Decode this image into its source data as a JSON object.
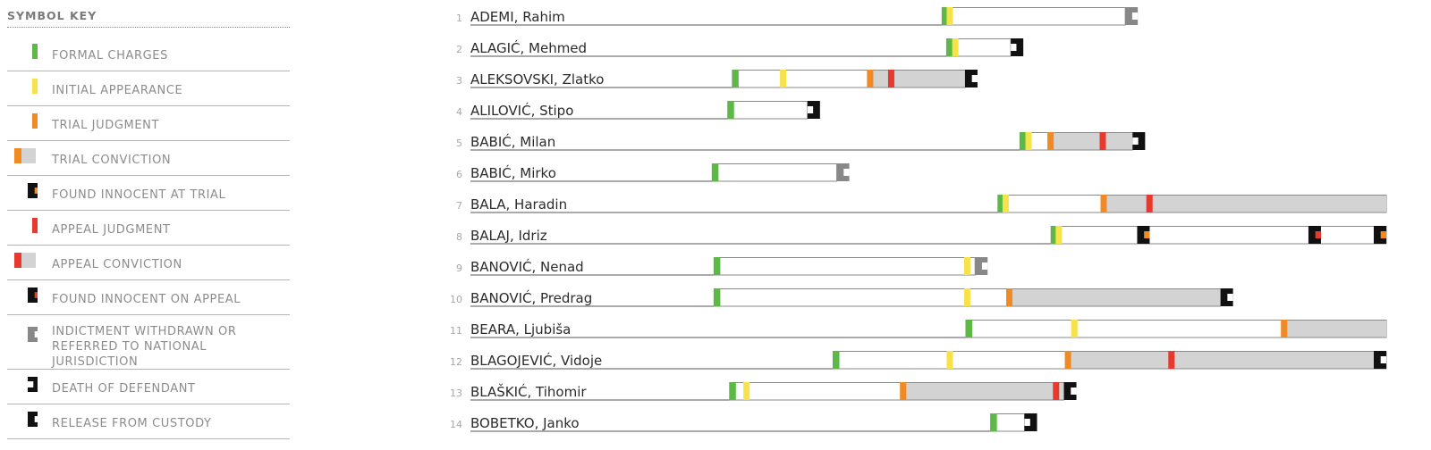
{
  "legend": {
    "title": "SYMBOL KEY",
    "items": [
      {
        "key": "formal_charges",
        "label": "FORMAL CHARGES",
        "icon": "green-bar-icon"
      },
      {
        "key": "initial_appearance",
        "label": "INITIAL APPEARANCE",
        "icon": "yellow-bar-icon"
      },
      {
        "key": "trial_judgment",
        "label": "TRIAL JUDGMENT",
        "icon": "orange-bar-icon"
      },
      {
        "key": "trial_conviction",
        "label": "TRIAL CONVICTION",
        "icon": "orange-gray-bar-icon"
      },
      {
        "key": "found_innocent_trial",
        "label": "FOUND INNOCENT AT TRIAL",
        "icon": "black-bracket-orange-icon"
      },
      {
        "key": "appeal_judgment",
        "label": "APPEAL JUDGMENT",
        "icon": "red-bar-icon"
      },
      {
        "key": "appeal_conviction",
        "label": "APPEAL CONVICTION",
        "icon": "red-gray-bar-icon"
      },
      {
        "key": "found_innocent_appeal",
        "label": "FOUND INNOCENT ON APPEAL",
        "icon": "black-bracket-red-icon"
      },
      {
        "key": "withdrawn",
        "label": "INDICTMENT WITHDRAWN OR\nREFERRED TO NATIONAL JURISDICTION",
        "icon": "gray-bracket-icon"
      },
      {
        "key": "death",
        "label": "DEATH OF DEFENDANT",
        "icon": "black-bracket-right-icon"
      },
      {
        "key": "release",
        "label": "RELEASE FROM CUSTODY",
        "icon": "black-bracket-left-icon"
      }
    ]
  },
  "colors": {
    "formal_charges": "#5cb946",
    "initial_appearance": "#f7e24a",
    "trial_judgment": "#f08a24",
    "appeal_judgment": "#e8392e",
    "conviction_fill": "#d3d3d3",
    "bracket_black": "#111111",
    "bracket_gray": "#888888",
    "row_line": "#555555",
    "bar_border": "#8a8a8a"
  },
  "chart_data": {
    "type": "timeline",
    "x_units": "relative timeline position (0-100, no printed axis)",
    "xlim": [
      0,
      100
    ],
    "rows": [
      {
        "num": "1",
        "name": "ADEMI, Rahim",
        "start": 51.5,
        "end": 71.5,
        "events": [
          {
            "x": 51.5,
            "type": "formal_charges"
          },
          {
            "x": 52.0,
            "type": "initial_appearance"
          },
          {
            "x": 71.5,
            "type": "withdrawn"
          }
        ]
      },
      {
        "num": "2",
        "name": "ALAGIĆ, Mehmed",
        "start": 52.0,
        "end": 59.0,
        "events": [
          {
            "x": 52.0,
            "type": "formal_charges"
          },
          {
            "x": 52.6,
            "type": "initial_appearance"
          },
          {
            "x": 59.0,
            "type": "death"
          }
        ]
      },
      {
        "num": "3",
        "name": "ALEKSOVSKI, Zlatko",
        "start": 28.6,
        "end": 54.0,
        "segments": [
          {
            "from": 43.3,
            "to": 54.0,
            "type": "conviction_fill"
          }
        ],
        "events": [
          {
            "x": 28.6,
            "type": "formal_charges"
          },
          {
            "x": 33.8,
            "type": "initial_appearance"
          },
          {
            "x": 43.3,
            "type": "trial_judgment"
          },
          {
            "x": 45.6,
            "type": "appeal_judgment"
          },
          {
            "x": 54.0,
            "type": "release"
          }
        ]
      },
      {
        "num": "4",
        "name": "ALILOVIĆ, Stipo",
        "start": 28.1,
        "end": 36.8,
        "events": [
          {
            "x": 28.1,
            "type": "formal_charges"
          },
          {
            "x": 36.8,
            "type": "death"
          }
        ]
      },
      {
        "num": "5",
        "name": "BABIĆ, Milan",
        "start": 60.0,
        "end": 72.3,
        "segments": [
          {
            "from": 63.0,
            "to": 72.3,
            "type": "conviction_fill"
          }
        ],
        "events": [
          {
            "x": 60.0,
            "type": "formal_charges"
          },
          {
            "x": 60.6,
            "type": "initial_appearance"
          },
          {
            "x": 63.0,
            "type": "trial_judgment"
          },
          {
            "x": 68.7,
            "type": "appeal_judgment"
          },
          {
            "x": 72.3,
            "type": "death"
          }
        ]
      },
      {
        "num": "6",
        "name": "BABIĆ, Mirko",
        "start": 26.4,
        "end": 40.0,
        "events": [
          {
            "x": 26.4,
            "type": "formal_charges"
          },
          {
            "x": 40.0,
            "type": "withdrawn"
          }
        ]
      },
      {
        "num": "7",
        "name": "BALA, Haradin",
        "start": 57.6,
        "end": 100.0,
        "segments": [
          {
            "from": 68.8,
            "to": 100.0,
            "type": "conviction_fill"
          }
        ],
        "events": [
          {
            "x": 57.6,
            "type": "formal_charges"
          },
          {
            "x": 58.1,
            "type": "initial_appearance"
          },
          {
            "x": 68.8,
            "type": "trial_judgment"
          },
          {
            "x": 73.8,
            "type": "appeal_judgment"
          }
        ]
      },
      {
        "num": "8",
        "name": "BALAJ, Idriz",
        "start": 63.4,
        "end": 100.0,
        "events": [
          {
            "x": 63.4,
            "type": "formal_charges"
          },
          {
            "x": 63.9,
            "type": "initial_appearance"
          },
          {
            "x": 72.8,
            "type": "found_innocent_trial"
          },
          {
            "x": 91.5,
            "type": "found_innocent_appeal"
          },
          {
            "x": 99.5,
            "type": "found_innocent_trial"
          }
        ]
      },
      {
        "num": "9",
        "name": "BANOVIĆ, Nenad",
        "start": 26.6,
        "end": 55.1,
        "events": [
          {
            "x": 26.6,
            "type": "formal_charges"
          },
          {
            "x": 53.9,
            "type": "initial_appearance"
          },
          {
            "x": 55.1,
            "type": "withdrawn"
          }
        ]
      },
      {
        "num": "10",
        "name": "BANOVIĆ, Predrag",
        "start": 26.6,
        "end": 81.9,
        "segments": [
          {
            "from": 58.5,
            "to": 81.9,
            "type": "conviction_fill"
          }
        ],
        "events": [
          {
            "x": 26.6,
            "type": "formal_charges"
          },
          {
            "x": 53.9,
            "type": "initial_appearance"
          },
          {
            "x": 58.5,
            "type": "trial_judgment"
          },
          {
            "x": 81.9,
            "type": "release"
          }
        ]
      },
      {
        "num": "11",
        "name": "BEARA, Ljubiša",
        "start": 54.1,
        "end": 100.0,
        "segments": [
          {
            "from": 88.5,
            "to": 100.0,
            "type": "conviction_fill"
          }
        ],
        "events": [
          {
            "x": 54.1,
            "type": "formal_charges"
          },
          {
            "x": 65.6,
            "type": "initial_appearance"
          },
          {
            "x": 88.5,
            "type": "trial_judgment"
          }
        ]
      },
      {
        "num": "12",
        "name": "BLAGOJEVIĆ, Vidoje",
        "start": 39.6,
        "end": 100.0,
        "segments": [
          {
            "from": 64.9,
            "to": 100.0,
            "type": "conviction_fill"
          }
        ],
        "events": [
          {
            "x": 39.6,
            "type": "formal_charges"
          },
          {
            "x": 52.0,
            "type": "initial_appearance"
          },
          {
            "x": 64.9,
            "type": "trial_judgment"
          },
          {
            "x": 76.2,
            "type": "appeal_judgment"
          },
          {
            "x": 99.3,
            "type": "release"
          }
        ]
      },
      {
        "num": "13",
        "name": "BLAŠKIĆ, Tihomir",
        "start": 28.3,
        "end": 64.8,
        "segments": [
          {
            "from": 46.9,
            "to": 64.8,
            "type": "conviction_fill"
          }
        ],
        "events": [
          {
            "x": 28.3,
            "type": "formal_charges"
          },
          {
            "x": 29.8,
            "type": "initial_appearance"
          },
          {
            "x": 46.9,
            "type": "trial_judgment"
          },
          {
            "x": 63.6,
            "type": "appeal_judgment"
          },
          {
            "x": 64.8,
            "type": "release"
          }
        ]
      },
      {
        "num": "14",
        "name": "BOBETKO, Janko",
        "start": 56.8,
        "end": 60.5,
        "events": [
          {
            "x": 56.8,
            "type": "formal_charges"
          },
          {
            "x": 60.5,
            "type": "death"
          }
        ]
      }
    ]
  }
}
